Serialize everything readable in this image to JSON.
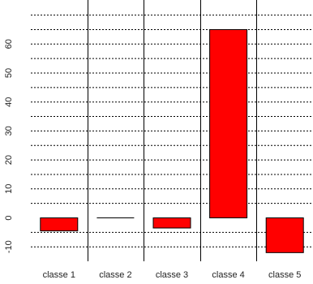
{
  "chart_data": {
    "type": "bar",
    "title": "",
    "xlabel": "",
    "ylabel": "",
    "categories": [
      "classe 1",
      "classe 2",
      "classe 3",
      "classe 4",
      "classe 5"
    ],
    "values": [
      -4.5,
      0,
      -3.5,
      65,
      -12
    ],
    "ylim": [
      -12,
      65
    ],
    "y_ticks": [
      -10,
      0,
      10,
      20,
      30,
      40,
      50,
      60
    ],
    "bar_color": "#ff0000",
    "bar_border_color": "#000000",
    "grid": "horizontal dotted",
    "grid_color": "#000000",
    "separator_color": "#000000"
  }
}
